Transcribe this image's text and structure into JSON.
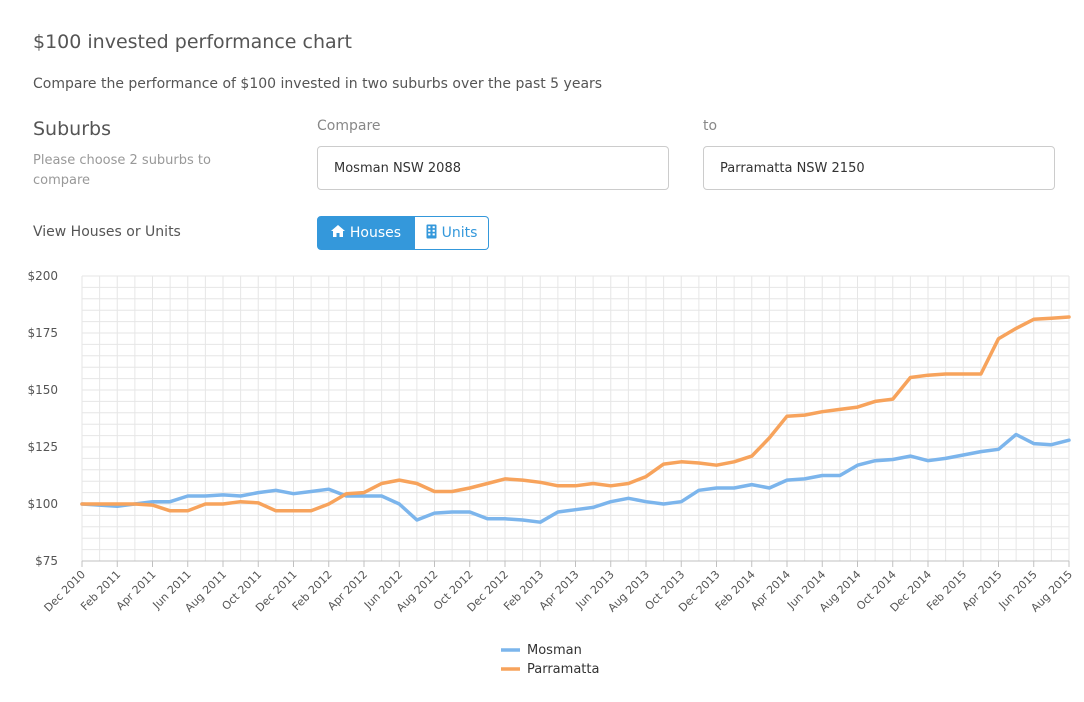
{
  "page": {
    "title": "$100 invested performance chart",
    "description": "Compare the performance of $100 invested in two suburbs over the past 5 years"
  },
  "suburbs": {
    "heading": "Suburbs",
    "help": "Please choose 2 suburbs to compare",
    "compare_label": "Compare",
    "compare_value": "Mosman NSW 2088",
    "to_label": "to",
    "to_value": "Parramatta NSW 2150"
  },
  "view": {
    "label": "View Houses or Units",
    "houses_label": "Houses",
    "units_label": "Units",
    "selected": "Houses"
  },
  "icons": {
    "houses": "home-icon",
    "units": "building-icon"
  },
  "colors": {
    "mosman": "#7cb5ec",
    "parramatta": "#f7a35c",
    "accent": "#3498db"
  },
  "chart_data": {
    "type": "line",
    "title": "",
    "xlabel": "",
    "ylabel": "",
    "ylim": [
      75,
      200
    ],
    "y_ticks": [
      "$75",
      "$100",
      "$125",
      "$150",
      "$175",
      "$200"
    ],
    "grid": true,
    "legend_position": "bottom",
    "x": [
      "Dec 2010",
      "Jan 2011",
      "Feb 2011",
      "Mar 2011",
      "Apr 2011",
      "May 2011",
      "Jun 2011",
      "Jul 2011",
      "Aug 2011",
      "Sep 2011",
      "Oct 2011",
      "Nov 2011",
      "Dec 2011",
      "Jan 2012",
      "Feb 2012",
      "Mar 2012",
      "Apr 2012",
      "May 2012",
      "Jun 2012",
      "Jul 2012",
      "Aug 2012",
      "Sep 2012",
      "Oct 2012",
      "Nov 2012",
      "Dec 2012",
      "Jan 2013",
      "Feb 2013",
      "Mar 2013",
      "Apr 2013",
      "May 2013",
      "Jun 2013",
      "Jul 2013",
      "Aug 2013",
      "Sep 2013",
      "Oct 2013",
      "Nov 2013",
      "Dec 2013",
      "Jan 2014",
      "Feb 2014",
      "Mar 2014",
      "Apr 2014",
      "May 2014",
      "Jun 2014",
      "Jul 2014",
      "Aug 2014",
      "Sep 2014",
      "Oct 2014",
      "Nov 2014",
      "Dec 2014",
      "Jan 2015",
      "Feb 2015",
      "Mar 2015",
      "Apr 2015",
      "May 2015",
      "Jun 2015",
      "Jul 2015",
      "Aug 2015"
    ],
    "x_tick_labels": [
      "Dec 2010",
      "Feb 2011",
      "Apr 2011",
      "Jun 2011",
      "Aug 2011",
      "Oct 2011",
      "Dec 2011",
      "Feb 2012",
      "Apr 2012",
      "Jun 2012",
      "Aug 2012",
      "Oct 2012",
      "Dec 2012",
      "Feb 2013",
      "Apr 2013",
      "Jun 2013",
      "Aug 2013",
      "Oct 2013",
      "Dec 2013",
      "Feb 2014",
      "Apr 2014",
      "Jun 2014",
      "Aug 2014",
      "Oct 2014",
      "Dec 2014",
      "Feb 2015",
      "Apr 2015",
      "Jun 2015",
      "Aug 2015"
    ],
    "series": [
      {
        "name": "Mosman",
        "color": "#7cb5ec",
        "values": [
          100,
          99.5,
          99,
          100,
          101,
          101,
          103.5,
          103.5,
          104,
          103.5,
          105,
          106,
          104.5,
          105.5,
          106.5,
          103.5,
          103.5,
          103.5,
          100,
          93,
          96,
          96.5,
          96.5,
          93.5,
          93.5,
          93,
          92,
          96.5,
          97.5,
          98.5,
          101,
          102.5,
          101,
          100,
          101,
          106,
          107,
          107,
          108.5,
          107,
          110.5,
          111,
          112.5,
          112.5,
          117,
          119,
          119.5,
          121,
          119,
          120,
          121.5,
          123,
          124,
          130.5,
          126.5,
          126,
          128
        ]
      },
      {
        "name": "Parramatta",
        "color": "#f7a35c",
        "values": [
          100,
          100,
          100,
          100,
          99.5,
          97,
          97,
          100,
          100,
          101,
          100.5,
          97,
          97,
          97,
          100,
          104.5,
          105,
          109,
          110.5,
          109,
          105.5,
          105.5,
          107,
          109,
          111,
          110.5,
          109.5,
          108,
          108,
          109,
          108,
          109,
          112,
          117.5,
          118.5,
          118,
          117,
          118.5,
          121,
          129,
          138.5,
          139,
          140.5,
          141.5,
          142.5,
          145,
          146,
          155.5,
          156.5,
          157,
          157,
          157,
          172.5,
          177,
          181,
          181.5,
          182
        ]
      }
    ]
  }
}
